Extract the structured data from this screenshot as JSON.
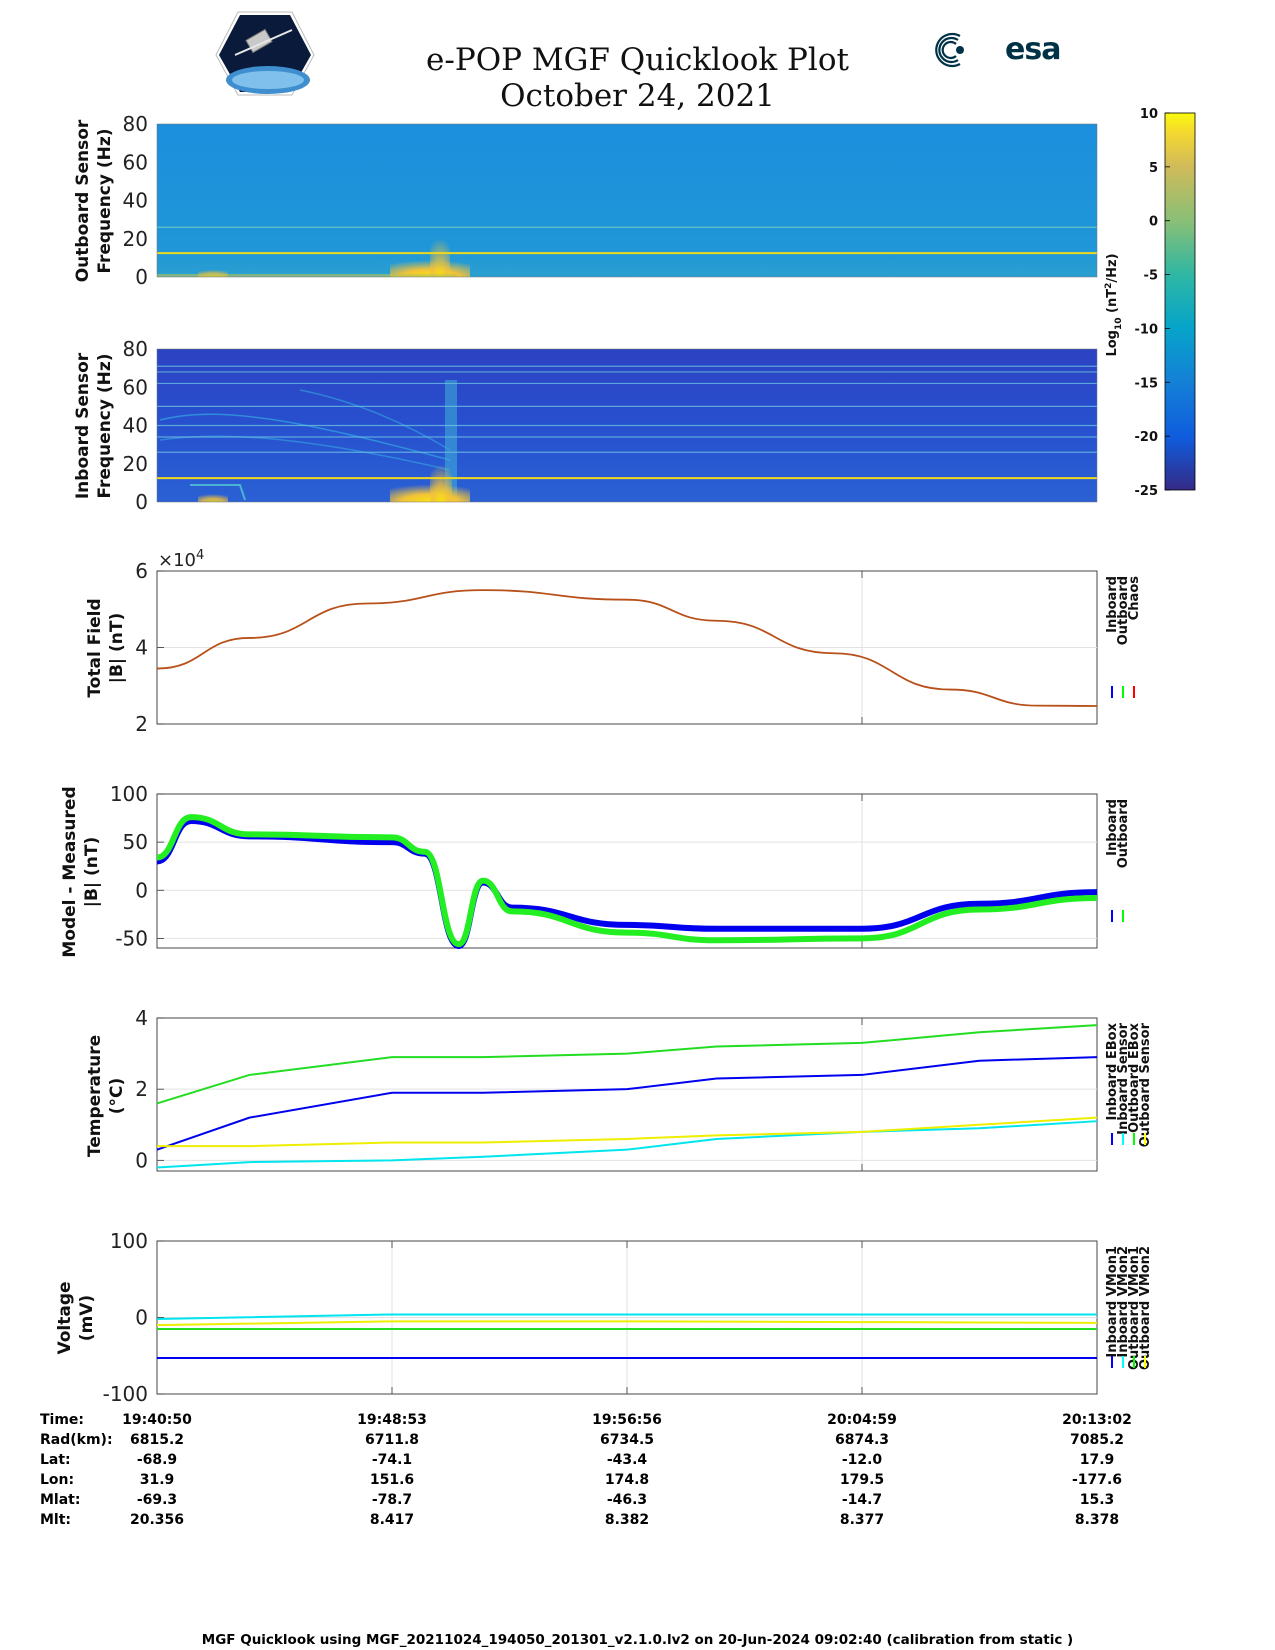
{
  "header": {
    "title_line1": "e-POP MGF Quicklook Plot",
    "title_line2": "October 24, 2021",
    "esa_logo_text": "esa",
    "mission_logo": "cassiope-satellite-emblem"
  },
  "colorbar": {
    "label_log": "Log",
    "label_sub": "10",
    "label_unit": " (nT",
    "label_sup": "2",
    "label_end": "/Hz)",
    "ticks": [
      10,
      5,
      0,
      -5,
      -10,
      -15,
      -20,
      -25
    ],
    "range": [
      -25,
      10
    ],
    "colormap": "parula"
  },
  "panels": {
    "outboard_spectrogram": {
      "ylabel1": "Outboard Sensor",
      "ylabel2": "Frequency (Hz)",
      "yticks": [
        0,
        20,
        40,
        60,
        80
      ],
      "ylim": [
        0,
        80
      ],
      "lines_hz": [
        12.5,
        26
      ]
    },
    "inboard_spectrogram": {
      "ylabel1": "Inboard Sensor",
      "ylabel2": "Frequency (Hz)",
      "yticks": [
        0,
        20,
        40,
        60,
        80
      ],
      "ylim": [
        0,
        80
      ],
      "lines_hz": [
        12.5,
        26,
        34,
        40,
        50,
        62,
        68,
        71
      ]
    },
    "total_field": {
      "ylabel1": "Total Field",
      "ylabel2": "|B| (nT)",
      "yticks": [
        2,
        4,
        6
      ],
      "exponent_base": "×10",
      "exponent_power": "4",
      "ylim": [
        2,
        6
      ],
      "legend": [
        "Inboard",
        "Outboard",
        "Chaos"
      ],
      "legend_colors": [
        "#0000ff",
        "#00ff00",
        "#ff0000"
      ]
    },
    "model_measured": {
      "ylabel1": "Model - Measured",
      "ylabel2": "|B| (nT)",
      "yticks": [
        -50,
        0,
        50,
        100
      ],
      "ylim": [
        -60,
        100
      ],
      "legend": [
        "Inboard",
        "Outboard"
      ],
      "legend_colors": [
        "#0000ff",
        "#00ff00"
      ]
    },
    "temperature": {
      "ylabel1": "Temperature",
      "ylabel2": "(°C)",
      "yticks": [
        0,
        2,
        4
      ],
      "ylim": [
        -0.3,
        4
      ],
      "legend": [
        "Inboard EBox",
        "Inboard Sensor",
        "Outboard EBox",
        "Outboard Sensor"
      ],
      "legend_colors": [
        "#0000ff",
        "#00ffff",
        "#00ff00",
        "#ffff00"
      ]
    },
    "voltage": {
      "ylabel1": "Voltage",
      "ylabel2": "(mV)",
      "yticks": [
        -100,
        0,
        100
      ],
      "ylim": [
        -100,
        100
      ],
      "legend": [
        "Inboard VMon1",
        "Inboard VMon2",
        "Outboard VMon1",
        "Outboard VMon2"
      ],
      "legend_colors": [
        "#0000ff",
        "#00ffff",
        "#00ff00",
        "#ffff00"
      ]
    }
  },
  "chart_data": [
    {
      "type": "line",
      "ylabel": "Total Field |B| (nT)",
      "x": [
        "19:40:50",
        "19:44:00",
        "19:48:00",
        "19:52:00",
        "19:56:56",
        "20:00:00",
        "20:04:00",
        "20:08:00",
        "20:11:00",
        "20:13:02"
      ],
      "series": [
        {
          "name": "Chaos",
          "values": [
            34500,
            42500,
            51500,
            55000,
            52500,
            47000,
            38500,
            29000,
            24800,
            24700
          ]
        }
      ],
      "ylim": [
        20000,
        60000
      ]
    },
    {
      "type": "line",
      "ylabel": "Model - Measured |B| (nT)",
      "x": [
        "19:40:50",
        "19:42:00",
        "19:44:00",
        "19:48:53",
        "19:50:00",
        "19:51:10",
        "19:52:00",
        "19:53:00",
        "19:56:56",
        "20:00:00",
        "20:04:59",
        "20:09:00",
        "20:13:02"
      ],
      "series": [
        {
          "name": "Inboard",
          "values": [
            30,
            72,
            56,
            50,
            38,
            -58,
            8,
            -18,
            -36,
            -40,
            -40,
            -14,
            -2
          ]
        },
        {
          "name": "Outboard",
          "values": [
            34,
            76,
            58,
            55,
            40,
            -56,
            10,
            -22,
            -44,
            -52,
            -50,
            -20,
            -8
          ]
        }
      ],
      "ylim": [
        -60,
        100
      ]
    },
    {
      "type": "line",
      "ylabel": "Temperature (°C)",
      "x": [
        "19:40:50",
        "19:44:00",
        "19:48:53",
        "19:52:00",
        "19:56:56",
        "20:00:00",
        "20:04:59",
        "20:09:00",
        "20:13:02"
      ],
      "series": [
        {
          "name": "Inboard EBox",
          "values": [
            0.3,
            1.2,
            1.9,
            1.9,
            2.0,
            2.3,
            2.4,
            2.8,
            2.9
          ]
        },
        {
          "name": "Inboard Sensor",
          "values": [
            -0.2,
            -0.05,
            0.0,
            0.1,
            0.3,
            0.6,
            0.8,
            0.9,
            1.1
          ]
        },
        {
          "name": "Outboard EBox",
          "values": [
            1.6,
            2.4,
            2.9,
            2.9,
            3.0,
            3.2,
            3.3,
            3.6,
            3.8
          ]
        },
        {
          "name": "Outboard Sensor",
          "values": [
            0.4,
            0.4,
            0.5,
            0.5,
            0.6,
            0.7,
            0.8,
            1.0,
            1.2
          ]
        }
      ],
      "ylim": [
        -0.3,
        4
      ]
    },
    {
      "type": "line",
      "ylabel": "Voltage (mV)",
      "x": [
        "19:40:50",
        "19:48:53",
        "19:56:56",
        "20:04:59",
        "20:13:02"
      ],
      "series": [
        {
          "name": "Inboard VMon1",
          "values": [
            -53,
            -53,
            -53,
            -53,
            -53
          ]
        },
        {
          "name": "Inboard VMon2",
          "values": [
            -2,
            4,
            4,
            4,
            4
          ]
        },
        {
          "name": "Outboard VMon1",
          "values": [
            -15,
            -15,
            -15,
            -15,
            -15
          ]
        },
        {
          "name": "Outboard VMon2",
          "values": [
            -10,
            -5,
            -5,
            -6,
            -7
          ]
        }
      ],
      "ylim": [
        -100,
        100
      ]
    }
  ],
  "ephemeris": {
    "row_labels": [
      "Time:",
      "Rad(km):",
      "Lat:",
      "Lon:",
      "Mlat:",
      "Mlt:"
    ],
    "columns": [
      [
        "19:40:50",
        "6815.2",
        "-68.9",
        "31.9",
        "-69.3",
        "20.356"
      ],
      [
        "19:48:53",
        "6711.8",
        "-74.1",
        "151.6",
        "-78.7",
        "8.417"
      ],
      [
        "19:56:56",
        "6734.5",
        "-43.4",
        "174.8",
        "-46.3",
        "8.382"
      ],
      [
        "20:04:59",
        "6874.3",
        "-12.0",
        "179.5",
        "-14.7",
        "8.377"
      ],
      [
        "20:13:02",
        "7085.2",
        "17.9",
        "-177.6",
        "15.3",
        "8.378"
      ]
    ]
  },
  "footer": "MGF Quicklook using MGF_20211024_194050_201301_v2.1.0.lv2 on 20-Jun-2024 09:02:40 (calibration from static )"
}
